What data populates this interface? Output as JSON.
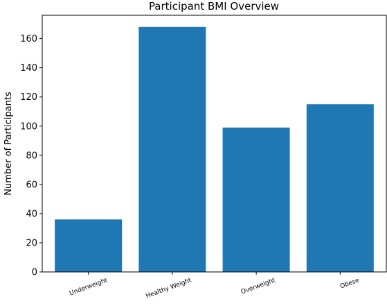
{
  "chart_data": {
    "type": "bar",
    "title": "Participant BMI Overview",
    "xlabel": "",
    "ylabel": "Number of Participants",
    "categories": [
      "Underweight",
      "Healthy Weight",
      "Overweight",
      "Obese"
    ],
    "values": [
      36,
      168,
      99,
      115
    ],
    "ylim": [
      0,
      176
    ],
    "yticks": [
      0,
      20,
      40,
      60,
      80,
      100,
      120,
      140,
      160
    ],
    "grid": false,
    "bar_color": "#1f77b4"
  }
}
